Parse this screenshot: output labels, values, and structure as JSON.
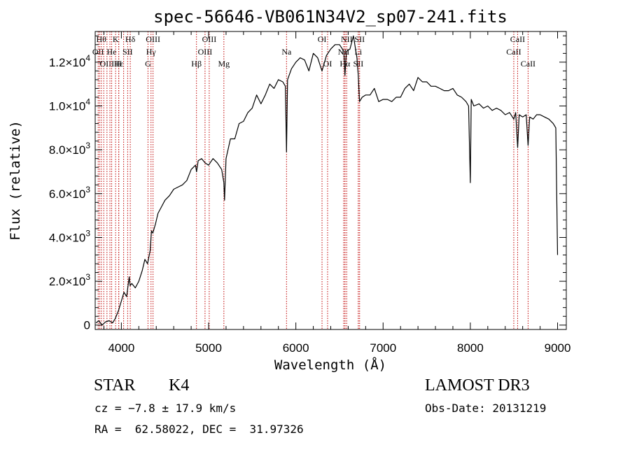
{
  "chart_data": {
    "type": "line",
    "title": "spec-56646-VB061N34V2_sp07-241.fits",
    "xlabel": "Wavelength (Å)",
    "ylabel": "Flux (relative)",
    "xlim": [
      3700,
      9100
    ],
    "ylim": [
      -200,
      13400
    ],
    "xticks": [
      {
        "value": 4000,
        "label": "4000"
      },
      {
        "value": 5000,
        "label": "5000"
      },
      {
        "value": 6000,
        "label": "6000"
      },
      {
        "value": 7000,
        "label": "7000"
      },
      {
        "value": 8000,
        "label": "8000"
      },
      {
        "value": 9000,
        "label": "9000"
      }
    ],
    "yticks": [
      {
        "value": 0,
        "mant": "0",
        "exp": ""
      },
      {
        "value": 2000,
        "mant": "2.0×10",
        "exp": "3"
      },
      {
        "value": 4000,
        "mant": "4.0×10",
        "exp": "3"
      },
      {
        "value": 6000,
        "mant": "6.0×10",
        "exp": "3"
      },
      {
        "value": 8000,
        "mant": "8.0×10",
        "exp": "3"
      },
      {
        "value": 10000,
        "mant": "1.0×10",
        "exp": "4"
      },
      {
        "value": 12000,
        "mant": "1.2×10",
        "exp": "4"
      }
    ],
    "x_minor_step": 200,
    "y_minor_step": 400,
    "grid": false,
    "series": [
      {
        "x": [
          3710,
          3740,
          3780,
          3820,
          3860,
          3900,
          3930,
          3950,
          3970,
          3985,
          4000,
          4030,
          4060,
          4090,
          4100,
          4120,
          4160,
          4200,
          4240,
          4270,
          4300,
          4330,
          4345,
          4360,
          4390,
          4420,
          4460,
          4500,
          4550,
          4600,
          4650,
          4700,
          4750,
          4800,
          4850,
          4862,
          4880,
          4920,
          4960,
          5000,
          5050,
          5100,
          5150,
          5175,
          5183,
          5200,
          5250,
          5300,
          5350,
          5400,
          5450,
          5500,
          5550,
          5600,
          5650,
          5700,
          5750,
          5800,
          5850,
          5880,
          5893,
          5905,
          5950,
          6000,
          6050,
          6100,
          6150,
          6200,
          6250,
          6300,
          6350,
          6400,
          6450,
          6500,
          6550,
          6563,
          6580,
          6620,
          6660,
          6700,
          6715,
          6730,
          6760,
          6800,
          6850,
          6900,
          6950,
          7000,
          7050,
          7100,
          7150,
          7200,
          7250,
          7300,
          7350,
          7400,
          7450,
          7500,
          7550,
          7600,
          7650,
          7700,
          7750,
          7800,
          7850,
          7900,
          7950,
          7980,
          8000,
          8010,
          8040,
          8100,
          8150,
          8200,
          8250,
          8300,
          8350,
          8400,
          8450,
          8498,
          8520,
          8542,
          8560,
          8600,
          8640,
          8662,
          8680,
          8720,
          8760,
          8800,
          8850,
          8900,
          8950,
          8980,
          9000
        ],
        "y": [
          100,
          200,
          0,
          150,
          200,
          100,
          300,
          500,
          700,
          900,
          1100,
          1500,
          1300,
          2200,
          1800,
          1900,
          1700,
          2000,
          2500,
          3000,
          2800,
          3400,
          4300,
          4200,
          4600,
          5100,
          5400,
          5700,
          5900,
          6200,
          6300,
          6400,
          6600,
          7100,
          7300,
          7000,
          7500,
          7600,
          7400,
          7300,
          7600,
          7400,
          7100,
          6500,
          5700,
          7600,
          8500,
          8500,
          9200,
          9300,
          9700,
          9900,
          10500,
          10100,
          10500,
          11000,
          10800,
          11200,
          11100,
          10900,
          7900,
          11200,
          11700,
          12000,
          12200,
          12100,
          11600,
          12400,
          12200,
          11600,
          12300,
          12600,
          12800,
          12800,
          12500,
          11400,
          12500,
          12600,
          13200,
          12200,
          11400,
          10200,
          10400,
          10500,
          10500,
          10800,
          10200,
          10300,
          10300,
          10200,
          10400,
          10400,
          10800,
          11000,
          10700,
          11300,
          11100,
          11100,
          10900,
          10900,
          10800,
          10700,
          10700,
          10800,
          10500,
          10400,
          10200,
          10000,
          6500,
          10300,
          10000,
          10100,
          9900,
          10000,
          9800,
          9900,
          9800,
          9600,
          9700,
          9400,
          9700,
          8100,
          9600,
          9500,
          9600,
          8200,
          9500,
          9400,
          9600,
          9600,
          9500,
          9400,
          9200,
          9000,
          3200
        ]
      }
    ],
    "lines": [
      {
        "x": 3734,
        "label": "OII",
        "row": 1
      },
      {
        "x": 3750,
        "label": "",
        "row": 0
      },
      {
        "x": 3770,
        "label": "Hθ",
        "row": 0
      },
      {
        "x": 3798,
        "label": "",
        "row": 0
      },
      {
        "x": 3835,
        "label": "OIII",
        "row": 2
      },
      {
        "x": 3869,
        "label": "",
        "row": 0
      },
      {
        "x": 3889,
        "label": "He",
        "row": 1
      },
      {
        "x": 3934,
        "label": "K",
        "row": 0
      },
      {
        "x": 3970,
        "label": "H",
        "row": 2
      },
      {
        "x": 3970,
        "label": "Hε",
        "row": 2
      },
      {
        "x": 4026,
        "label": "",
        "row": 0
      },
      {
        "x": 4072,
        "label": "SII",
        "row": 1
      },
      {
        "x": 4102,
        "label": "Hδ",
        "row": 0
      },
      {
        "x": 4305,
        "label": "G",
        "row": 2
      },
      {
        "x": 4340,
        "label": "Hγ",
        "row": 1
      },
      {
        "x": 4363,
        "label": "OIII",
        "row": 0
      },
      {
        "x": 4861,
        "label": "Hβ",
        "row": 2
      },
      {
        "x": 4959,
        "label": "OIII",
        "row": 1
      },
      {
        "x": 5007,
        "label": "OIII",
        "row": 0
      },
      {
        "x": 5175,
        "label": "Mg",
        "row": 2
      },
      {
        "x": 5893,
        "label": "Na",
        "row": 1
      },
      {
        "x": 6300,
        "label": "OI",
        "row": 0
      },
      {
        "x": 6364,
        "label": "OI",
        "row": 2
      },
      {
        "x": 6548,
        "label": "NII",
        "row": 1
      },
      {
        "x": 6563,
        "label": "",
        "row": 0
      },
      {
        "x": 6583,
        "label": "NII",
        "row": 0
      },
      {
        "x": 6716,
        "label": "SII",
        "row": 2
      },
      {
        "x": 6731,
        "label": "SII",
        "row": 0
      },
      {
        "x": 6563,
        "label": "Hα",
        "row": 2
      },
      {
        "x": 6716,
        "label": "Li",
        "row": 1
      },
      {
        "x": 8498,
        "label": "CaII",
        "row": 1
      },
      {
        "x": 8542,
        "label": "CaII",
        "row": 0
      },
      {
        "x": 8662,
        "label": "CaII",
        "row": 2
      }
    ]
  },
  "info": {
    "class": "STAR",
    "subclass": "K4",
    "survey": "LAMOST DR3",
    "cz": "cz = −7.8 ± 17.9 km/s",
    "obs_date": "Obs-Date: 20131219",
    "coords": "RA =  62.58022, DEC =  31.97326"
  },
  "colors": {
    "spectrum": "#000000",
    "line_markers": "#c00000"
  }
}
